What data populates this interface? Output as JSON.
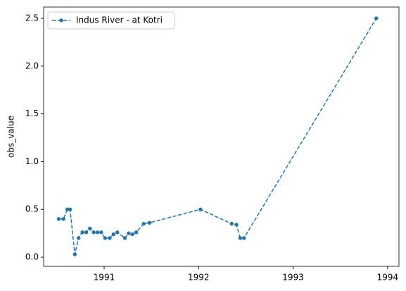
{
  "chart_data": {
    "type": "line",
    "ylabel": "obs_value",
    "x": [
      1990.52,
      1990.57,
      1990.61,
      1990.64,
      1990.69,
      1990.73,
      1990.77,
      1990.81,
      1990.85,
      1990.89,
      1990.93,
      1990.97,
      1991.01,
      1991.06,
      1991.1,
      1991.14,
      1991.22,
      1991.26,
      1991.3,
      1991.34,
      1991.42,
      1991.48,
      1992.02,
      1992.35,
      1992.4,
      1992.44,
      1992.48,
      1993.88
    ],
    "series": [
      {
        "name": "Indus River - at Kotri",
        "color": "#1f77b4",
        "values": [
          0.4,
          0.4,
          0.5,
          0.5,
          0.03,
          0.2,
          0.26,
          0.26,
          0.3,
          0.26,
          0.26,
          0.26,
          0.2,
          0.2,
          0.24,
          0.26,
          0.2,
          0.25,
          0.24,
          0.26,
          0.35,
          0.36,
          0.5,
          0.35,
          0.34,
          0.2,
          0.2,
          2.5
        ]
      }
    ],
    "xlim": [
      1990.36,
      1994.12
    ],
    "xticks": [
      1991,
      1992,
      1993,
      1994
    ],
    "ylim": [
      -0.096,
      2.618
    ],
    "yticks": [
      {
        "value": 0,
        "label": "0.0"
      },
      {
        "value": 0.5,
        "label": "0.5"
      },
      {
        "value": 1,
        "label": "1.0"
      },
      {
        "value": 1.5,
        "label": "1.5"
      },
      {
        "value": 2,
        "label": "2.0"
      },
      {
        "value": 2.5,
        "label": "2.5"
      }
    ],
    "legend": "upper left"
  }
}
